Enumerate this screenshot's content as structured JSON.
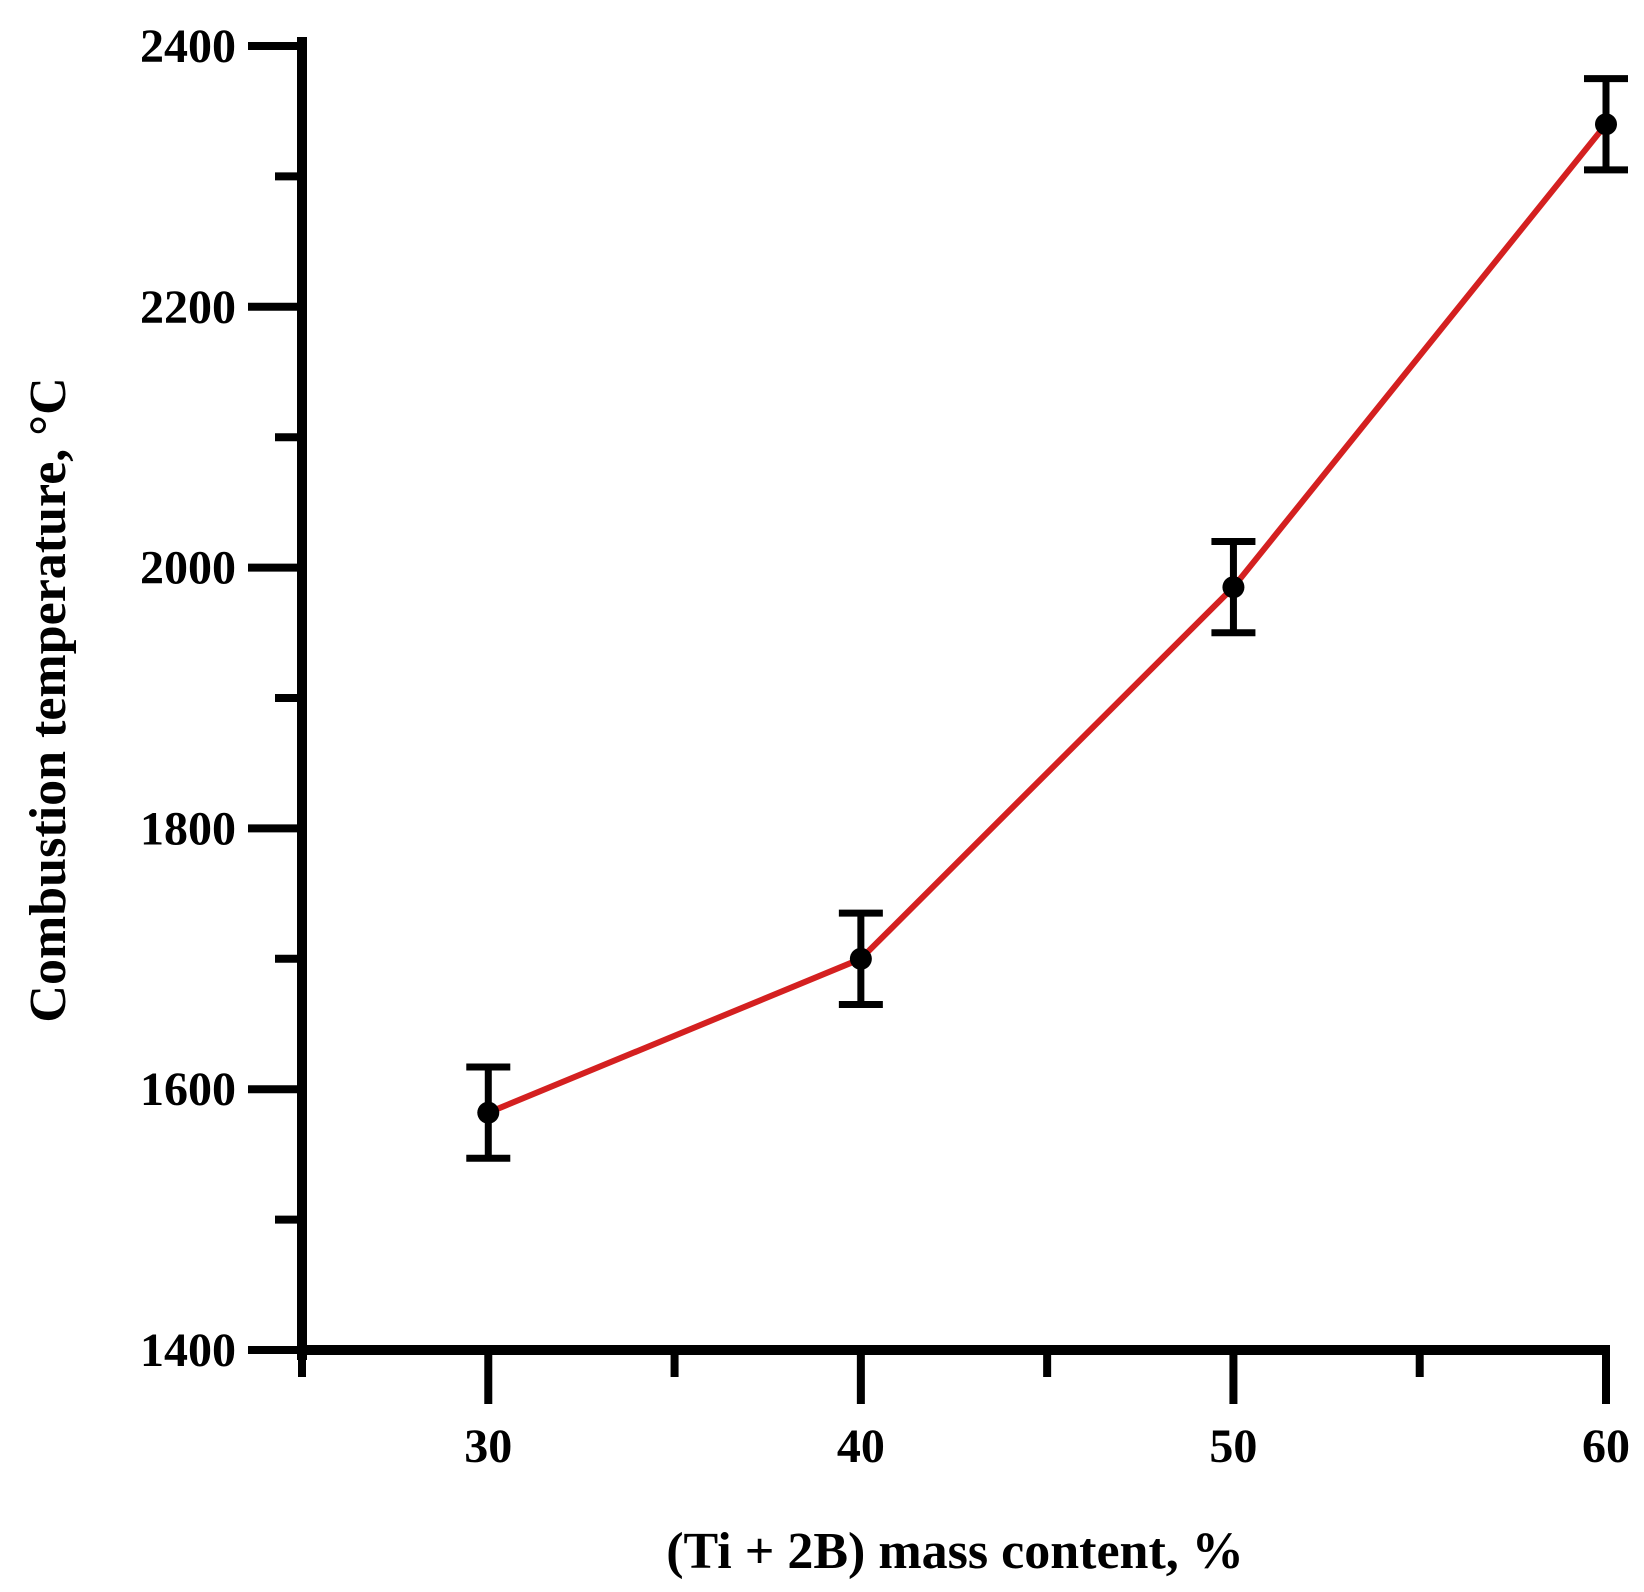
{
  "chart_data": {
    "type": "line",
    "title": "",
    "xlabel": "(Ti + 2B) mass content, %",
    "ylabel": "Combustion temperature, °C",
    "xlim": [
      25,
      60
    ],
    "ylim": [
      1400,
      2400
    ],
    "x_ticks_major": [
      30,
      40,
      50,
      60
    ],
    "x_ticks_minor": [
      25,
      35,
      45,
      55
    ],
    "y_ticks_major": [
      1400,
      1600,
      1800,
      2000,
      2200,
      2400
    ],
    "y_ticks_minor": [
      1500,
      1700,
      1900,
      2100,
      2300
    ],
    "x_tick_labels": [
      "30",
      "40",
      "50",
      "60"
    ],
    "y_tick_labels": [
      "1400",
      "1600",
      "1800",
      "2000",
      "2200",
      "2400"
    ],
    "grid": false,
    "series": [
      {
        "x": [
          30,
          40,
          50,
          60
        ],
        "y": [
          1582,
          1700,
          1985,
          2340
        ],
        "error": [
          35,
          35,
          35,
          35
        ],
        "line_color": "#d42020",
        "marker_color": "#000000",
        "errorbar_color": "#000000"
      }
    ]
  }
}
